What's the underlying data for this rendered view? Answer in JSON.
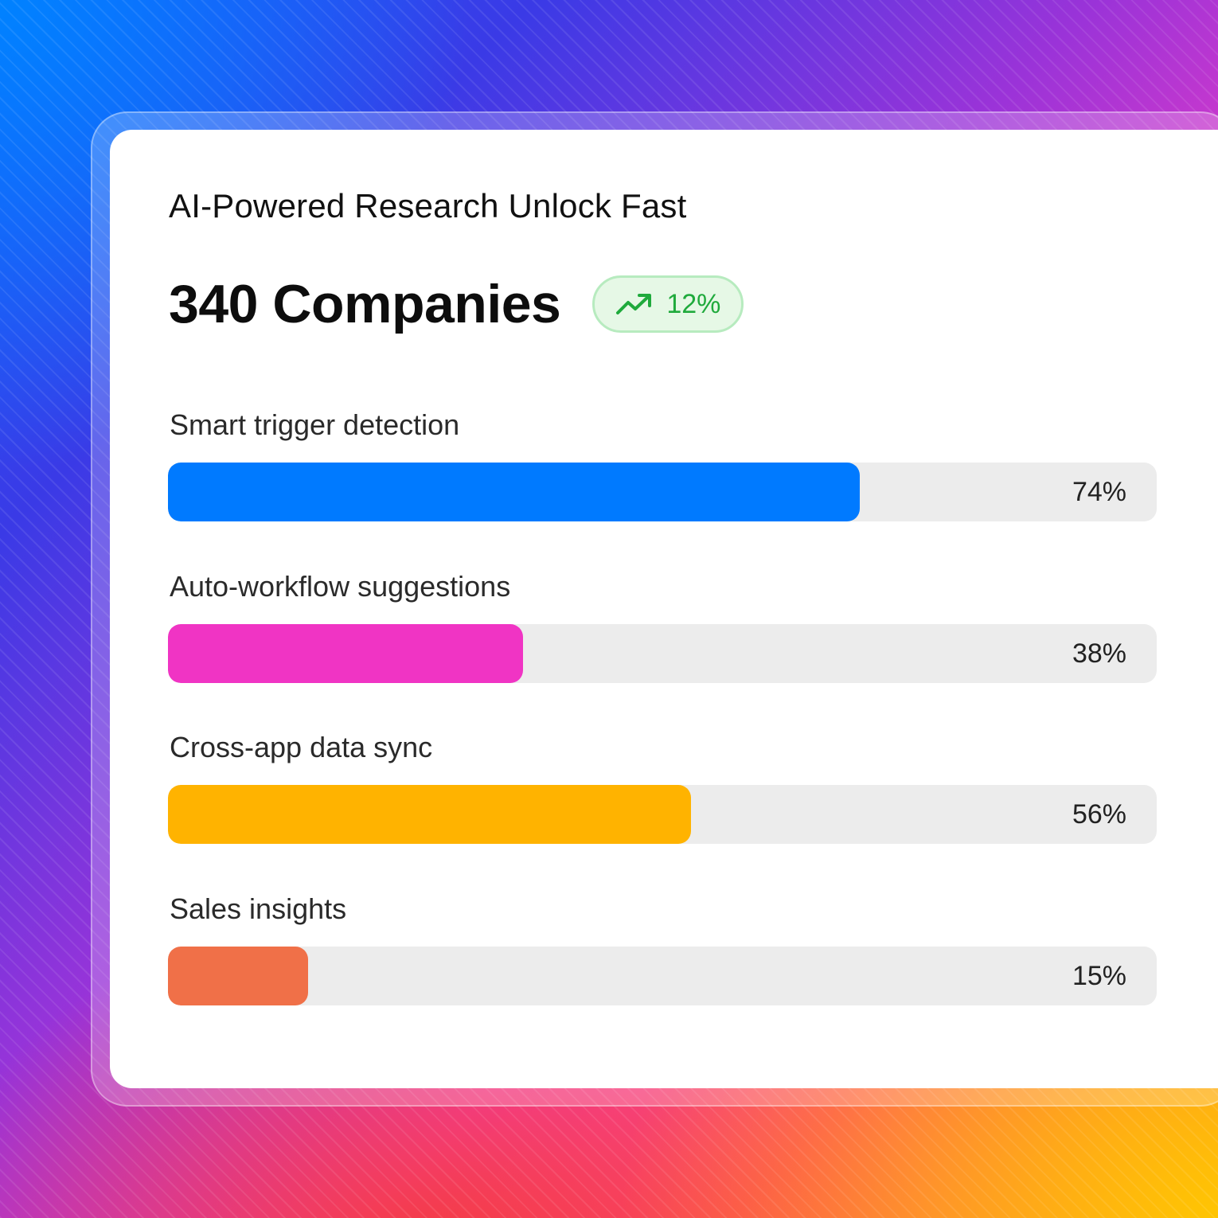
{
  "card": {
    "title": "AI-Powered Research Unlock Fast",
    "headline": "340 Companies",
    "badge": {
      "icon": "trending-up-icon",
      "value": "12%",
      "color": "#1faa3c"
    }
  },
  "metrics": [
    {
      "label": "Smart trigger detection",
      "value": 74,
      "display": "74%",
      "color": "#007aff"
    },
    {
      "label": "Auto-workflow suggestions",
      "value": 38,
      "display": "38%",
      "color": "#f034c4"
    },
    {
      "label": "Cross-app data sync",
      "value": 56,
      "display": "56%",
      "color": "#ffb300"
    },
    {
      "label": "Sales insights",
      "value": 15,
      "display": "15%",
      "color": "#f07048"
    }
  ]
}
